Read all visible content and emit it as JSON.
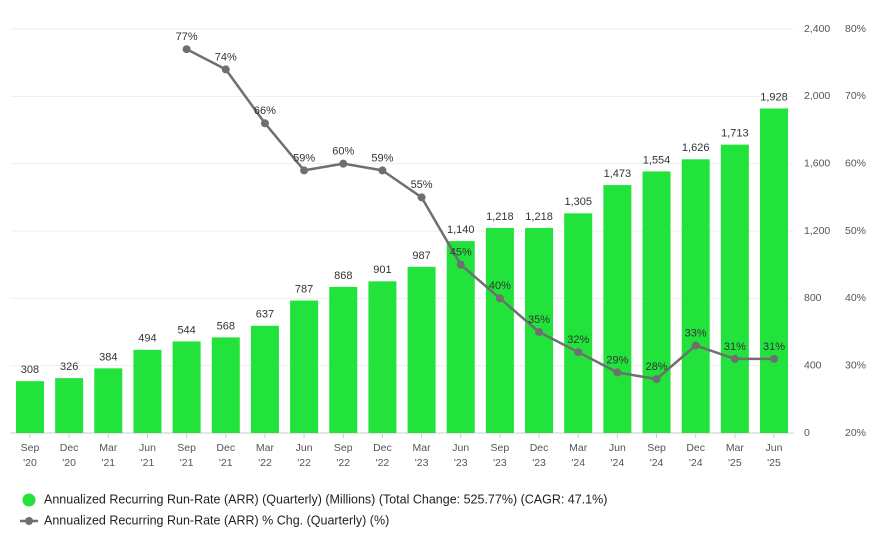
{
  "chart_data": {
    "type": "bar-line",
    "categories": [
      "Sep '20",
      "Dec '20",
      "Mar '21",
      "Jun '21",
      "Sep '21",
      "Dec '21",
      "Mar '22",
      "Jun '22",
      "Sep '22",
      "Dec '22",
      "Mar '23",
      "Jun '23",
      "Sep '23",
      "Dec '23",
      "Mar '24",
      "Jun '24",
      "Sep '24",
      "Dec '24",
      "Mar '25",
      "Jun '25"
    ],
    "series": [
      {
        "name": "Annualized Recurring Run-Rate (ARR) (Quarterly) (Millions) (Total Change: 525.77%) (CAGR: 47.1%)",
        "type": "bar",
        "color": "#22e33c",
        "values": [
          308,
          326,
          384,
          494,
          544,
          568,
          637,
          787,
          868,
          901,
          987,
          1140,
          1218,
          1218,
          1305,
          1473,
          1554,
          1626,
          1713,
          1928
        ],
        "value_labels": [
          "308",
          "326",
          "384",
          "494",
          "544",
          "568",
          "637",
          "787",
          "868",
          "901",
          "987",
          "1,140",
          "1,218",
          "1,218",
          "1,305",
          "1,473",
          "1,554",
          "1,626",
          "1,713",
          "1,928"
        ]
      },
      {
        "name": "Annualized Recurring Run-Rate (ARR) % Chg. (Quarterly) (%)",
        "type": "line",
        "axis": "y2",
        "color": "#6f6f6f",
        "values": [
          null,
          null,
          null,
          null,
          77,
          74,
          66,
          59,
          60,
          59,
          55,
          45,
          40,
          35,
          32,
          29,
          28,
          33,
          31,
          31
        ],
        "value_labels": [
          null,
          null,
          null,
          null,
          "77%",
          "74%",
          "66%",
          "59%",
          "60%",
          "59%",
          "55%",
          "45%",
          "40%",
          "35%",
          "32%",
          "29%",
          "28%",
          "33%",
          "31%",
          "31%"
        ]
      }
    ],
    "ylim": [
      0,
      2400
    ],
    "yticks": [
      0,
      400,
      800,
      {
        "value": 1200,
        "label": "1,200"
      },
      {
        "value": 1600,
        "label": "1,600"
      },
      {
        "value": 2000,
        "label": "2,000"
      },
      {
        "value": 2400,
        "label": "2,400"
      }
    ],
    "y2lim": [
      20,
      80
    ],
    "y2ticks": [
      {
        "value": 20,
        "label": "20%"
      },
      {
        "value": 30,
        "label": "30%"
      },
      {
        "value": 40,
        "label": "40%"
      },
      {
        "value": 50,
        "label": "50%"
      },
      {
        "value": 60,
        "label": "60%"
      },
      {
        "value": 70,
        "label": "70%"
      },
      {
        "value": 80,
        "label": "80%"
      }
    ],
    "grid": true
  }
}
